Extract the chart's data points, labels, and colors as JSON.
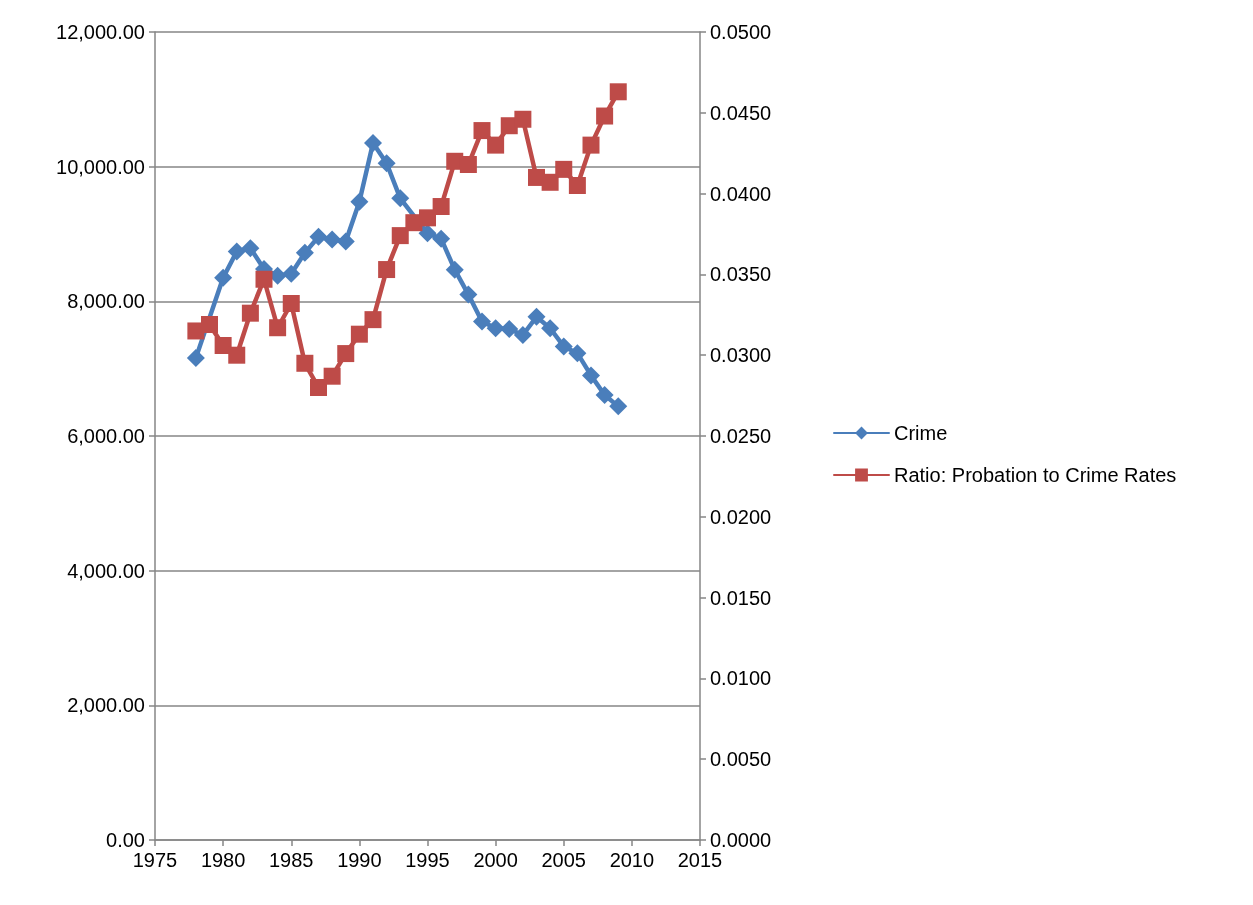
{
  "chart_data": {
    "type": "line",
    "x": [
      1978,
      1979,
      1980,
      1981,
      1982,
      1983,
      1984,
      1985,
      1986,
      1987,
      1988,
      1989,
      1990,
      1991,
      1992,
      1993,
      1994,
      1995,
      1996,
      1997,
      1998,
      1999,
      2000,
      2001,
      2002,
      2003,
      2004,
      2005,
      2006,
      2007,
      2008,
      2009
    ],
    "series": [
      {
        "name": "Crime",
        "color": "#4a7ebb",
        "marker": "diamond",
        "values": [
          7160,
          null,
          8350,
          8740,
          8790,
          8480,
          8380,
          8410,
          8720,
          8960,
          8920,
          8890,
          9480,
          10350,
          10050,
          9530,
          null,
          9010,
          8930,
          8470,
          8100,
          7700,
          7600,
          7590,
          7500,
          7770,
          7600,
          7330,
          7230,
          6900,
          6610,
          6440
        ]
      },
      {
        "name": "Ratio: Probation to Crime Rates",
        "color": "#be4b48",
        "marker": "square",
        "axis": "y2",
        "values": [
          0.0315,
          0.0319,
          0.0306,
          0.03,
          0.0326,
          0.0347,
          0.0317,
          0.0332,
          0.0295,
          0.028,
          0.0287,
          0.0301,
          0.0313,
          0.0322,
          0.0353,
          0.0374,
          0.0382,
          0.0385,
          0.0392,
          0.042,
          0.0418,
          0.0439,
          0.043,
          0.0442,
          0.0446,
          0.041,
          0.0407,
          0.0415,
          0.0405,
          0.043,
          0.0448,
          0.0463
        ]
      }
    ],
    "xlim": [
      1975,
      2015
    ],
    "xticks": [
      1975,
      1980,
      1985,
      1990,
      1995,
      2000,
      2005,
      2010,
      2015
    ],
    "ylim": [
      0,
      12000
    ],
    "yticks": [
      {
        "value": 0,
        "label": "0.00"
      },
      {
        "value": 2000,
        "label": "2,000.00"
      },
      {
        "value": 4000,
        "label": "4,000.00"
      },
      {
        "value": 6000,
        "label": "6,000.00"
      },
      {
        "value": 8000,
        "label": "8,000.00"
      },
      {
        "value": 10000,
        "label": "10,000.00"
      },
      {
        "value": 12000,
        "label": "12,000.00"
      }
    ],
    "y2lim": [
      0,
      0.05
    ],
    "y2ticks": [
      {
        "value": 0,
        "label": "0.0000"
      },
      {
        "value": 0.005,
        "label": "0.0050"
      },
      {
        "value": 0.01,
        "label": "0.0100"
      },
      {
        "value": 0.015,
        "label": "0.0150"
      },
      {
        "value": 0.02,
        "label": "0.0200"
      },
      {
        "value": 0.025,
        "label": "0.0250"
      },
      {
        "value": 0.03,
        "label": "0.0300"
      },
      {
        "value": 0.035,
        "label": "0.0350"
      },
      {
        "value": 0.04,
        "label": "0.0400"
      },
      {
        "value": 0.045,
        "label": "0.0450"
      },
      {
        "value": 0.05,
        "label": "0.0500"
      }
    ],
    "grid": "y",
    "legend": "right",
    "line_style": "solid"
  }
}
